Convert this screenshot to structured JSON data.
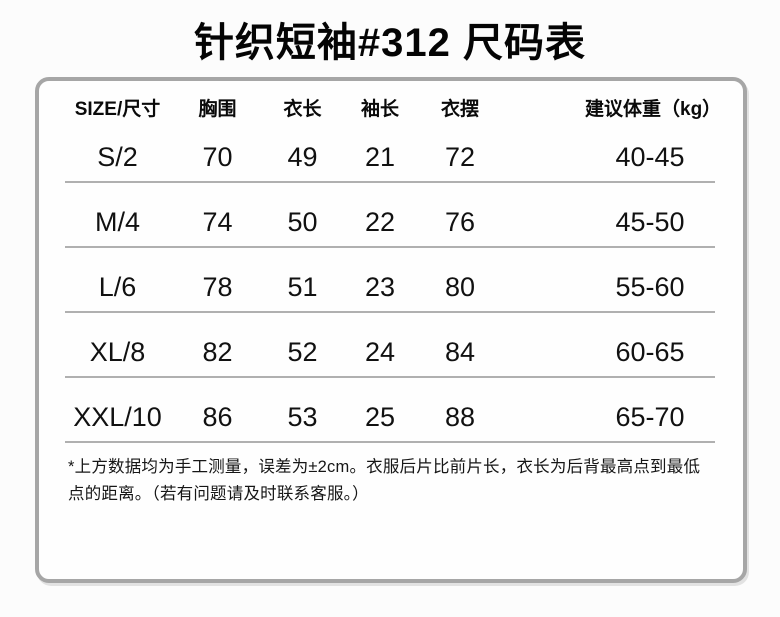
{
  "title": "针织短袖#312 尺码表",
  "table": {
    "columns": {
      "size": "SIZE/尺寸",
      "bust": "胸围",
      "length": "衣长",
      "sleeve": "袖长",
      "hem": "衣摆",
      "weight": "建议体重（kg）"
    },
    "rows": [
      {
        "size": "S/2",
        "bust": "70",
        "length": "49",
        "sleeve": "21",
        "hem": "72",
        "weight": "40-45"
      },
      {
        "size": "M/4",
        "bust": "74",
        "length": "50",
        "sleeve": "22",
        "hem": "76",
        "weight": "45-50"
      },
      {
        "size": "L/6",
        "bust": "78",
        "length": "51",
        "sleeve": "23",
        "hem": "80",
        "weight": "55-60"
      },
      {
        "size": "XL/8",
        "bust": "82",
        "length": "52",
        "sleeve": "24",
        "hem": "84",
        "weight": "60-65"
      },
      {
        "size": "XXL/10",
        "bust": "86",
        "length": "53",
        "sleeve": "25",
        "hem": "88",
        "weight": "65-70"
      }
    ]
  },
  "note": "*上方数据均为手工测量，误差为±2cm。衣服后片比前片长，衣长为后背最高点到最低点的距离。（若有问题请及时联系客服。）",
  "chart_data": {
    "type": "table",
    "title": "针织短袖#312 尺码表",
    "columns": [
      "SIZE/尺寸",
      "胸围",
      "衣长",
      "袖长",
      "衣摆",
      "建议体重（kg）"
    ],
    "rows": [
      [
        "S/2",
        70,
        49,
        21,
        72,
        "40-45"
      ],
      [
        "M/4",
        74,
        50,
        22,
        76,
        "45-50"
      ],
      [
        "L/6",
        78,
        51,
        23,
        80,
        "55-60"
      ],
      [
        "XL/8",
        82,
        52,
        24,
        84,
        "60-65"
      ],
      [
        "XXL/10",
        86,
        53,
        25,
        88,
        "65-70"
      ]
    ]
  },
  "colors": {
    "background": "#fcfcfc",
    "card_border": "#a6a6a6",
    "row_divider": "#b0b0b0",
    "text": "#111111"
  }
}
